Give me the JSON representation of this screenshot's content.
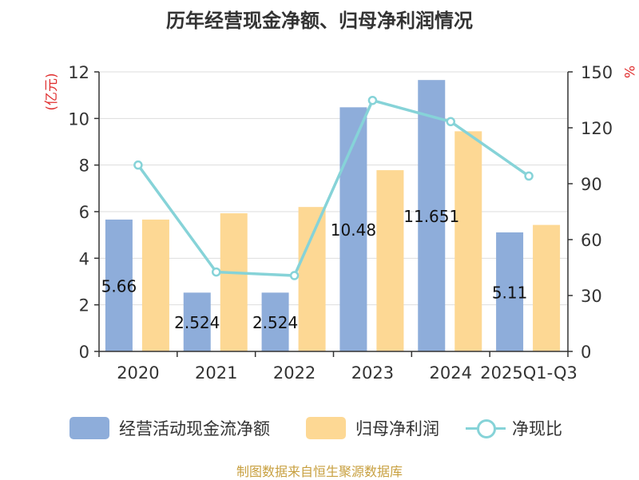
{
  "title": "历年经营现金净额、归母净利润情况",
  "source": "制图数据来自恒生聚源数据库",
  "chart_data": {
    "type": "bar",
    "categories": [
      "2020",
      "2021",
      "2022",
      "2023",
      "2024",
      "2025Q1-Q3"
    ],
    "series": [
      {
        "name": "经营活动现金流净额",
        "axis": "left",
        "color": "#8eadda",
        "values": [
          5.66,
          2.524,
          2.524,
          10.48,
          11.651,
          5.11
        ],
        "data_labels": [
          "5.66",
          "2.524",
          "2.524",
          "10.48",
          "11.651",
          "5.11"
        ]
      },
      {
        "name": "归母净利润",
        "axis": "left",
        "color": "#fdd894",
        "values": [
          5.66,
          5.93,
          6.2,
          7.78,
          9.45,
          5.43
        ]
      },
      {
        "name": "净现比",
        "type": "line",
        "axis": "right",
        "color": "#86d3d8",
        "values": [
          100,
          42.6,
          40.7,
          134.7,
          123.3,
          94.1
        ]
      }
    ],
    "y_left": {
      "label": "(亿元)",
      "min": 0,
      "max": 12,
      "ticks": [
        0,
        2,
        4,
        6,
        8,
        10,
        12
      ]
    },
    "y_right": {
      "label": "%",
      "min": 0,
      "max": 150,
      "ticks": [
        0,
        30,
        60,
        90,
        120,
        150
      ]
    },
    "grid": true,
    "legend_position": "bottom"
  },
  "colors": {
    "source_text": "#c8a040",
    "axis_label": "#e03030",
    "grid": "#dddddd",
    "axis": "#333333"
  }
}
